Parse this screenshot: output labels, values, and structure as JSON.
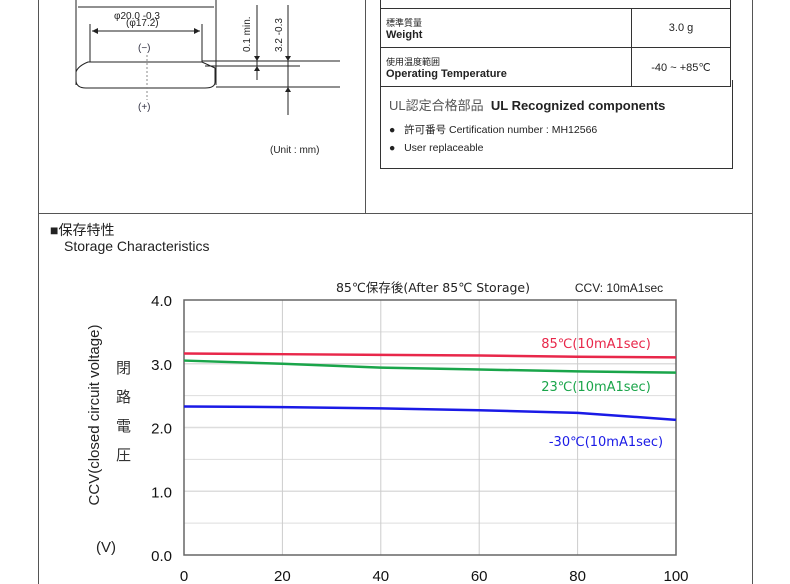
{
  "drawing": {
    "outer_dia": "φ20.0 -0.3",
    "inner_dia": "(φ17.2)",
    "neg": "(−)",
    "pos": "(+)",
    "min_gap": "0.1 min.",
    "height": "3.2 -0.3",
    "height_tol_top": "0",
    "unit": "(Unit : mm)"
  },
  "spec": {
    "rows": [
      {
        "jp": "標準質量",
        "en": "Weight",
        "value": "3.0 g"
      },
      {
        "jp": "使用温度範囲",
        "en": "Operating Temperature",
        "value": "-40 ~ +85℃"
      }
    ],
    "ul_title_jp": "UL認定合格部品",
    "ul_title_en": "UL Recognized components",
    "bullets": [
      "許可番号 Certification number : MH12566",
      "User replaceable"
    ]
  },
  "section": {
    "title_jp": "■保存特性",
    "title_en": "Storage Characteristics"
  },
  "chart_data": {
    "type": "line",
    "title": "85℃保存後(After 85℃ Storage)",
    "subtitle": "CCV: 10mA1sec",
    "ylabel": "CCV(closed circuit voltage)",
    "ylabel_jp": "閉路電圧",
    "yunit": "(V)",
    "ylim": [
      0,
      4
    ],
    "xlim": [
      0,
      100
    ],
    "grid": true,
    "yticks": [
      "0.0",
      "1.0",
      "2.0",
      "3.0",
      "4.0"
    ],
    "xticks": [
      "0",
      "20",
      "40",
      "60",
      "80",
      "100"
    ],
    "x": [
      0,
      20,
      40,
      60,
      80,
      100
    ],
    "series": [
      {
        "name": "85℃(10mA1sec)",
        "color": "#e8274a",
        "values": [
          3.16,
          3.15,
          3.14,
          3.13,
          3.11,
          3.1
        ]
      },
      {
        "name": "23℃(10mA1sec)",
        "color": "#1aa54a",
        "values": [
          3.05,
          3.0,
          2.94,
          2.91,
          2.88,
          2.86
        ]
      },
      {
        "name": "-30℃(10mA1sec)",
        "color": "#1a1ae6",
        "values": [
          2.33,
          2.32,
          2.3,
          2.27,
          2.23,
          2.12
        ]
      }
    ]
  }
}
